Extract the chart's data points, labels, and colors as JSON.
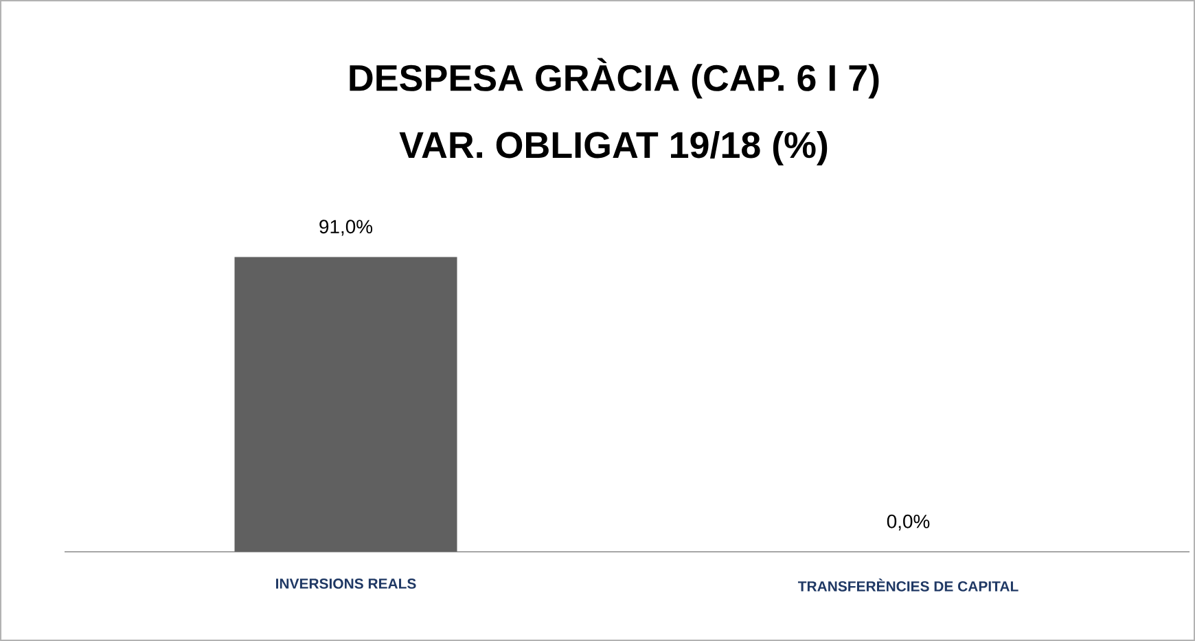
{
  "chart_data": {
    "type": "bar",
    "title": "DESPESA GRÀCIA (CAP. 6 I 7)",
    "subtitle": "VAR. OBLIGAT 19/18 (%)",
    "categories": [
      "INVERSIONS REALS",
      "TRANSFERÈNCIES DE CAPITAL"
    ],
    "values": [
      91.0,
      0.0
    ],
    "value_labels": [
      "91,0%",
      "0,0%"
    ],
    "color": "#606060"
  }
}
